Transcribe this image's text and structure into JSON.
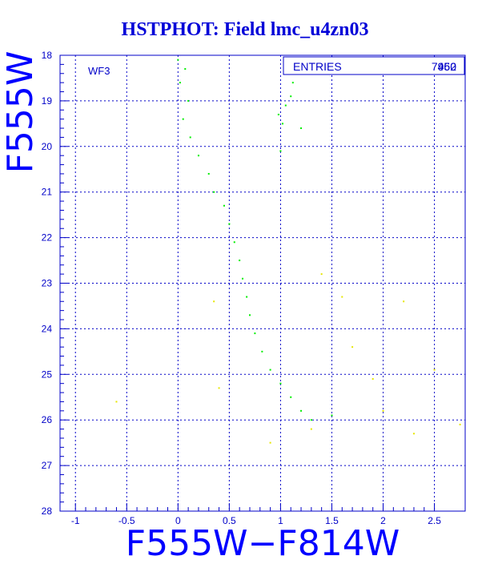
{
  "chart_data": {
    "type": "scatter",
    "title": "HSTPHOT: Field lmc_u4zn03",
    "xlabel": "F555W−F814W",
    "ylabel": "F555W",
    "xlim": [
      -1.15,
      2.8
    ],
    "ylim": [
      28,
      18
    ],
    "y_inverted": true,
    "grid": true,
    "xticks": [
      -1,
      -0.5,
      0,
      0.5,
      1,
      1.5,
      2,
      2.5
    ],
    "xtick_labels": [
      "-1",
      "-0.5",
      "0",
      "0.5",
      "1",
      "1.5",
      "2",
      "2.5"
    ],
    "yticks": [
      18,
      19,
      20,
      21,
      22,
      23,
      24,
      25,
      26,
      27,
      28
    ],
    "ytick_labels": [
      "18",
      "19",
      "20",
      "21",
      "22",
      "23",
      "24",
      "25",
      "26",
      "27",
      "28"
    ],
    "panel_label": "WF3",
    "stats_box": {
      "label": "ENTRIES",
      "value": "7960",
      "overprinted_value": "452"
    },
    "colors": {
      "axes": "#0000c8",
      "grid": "#0000c8",
      "title": "#0000d8",
      "points_main": "#00ee00",
      "points_secondary": "#e6e600"
    },
    "series": [
      {
        "name": "",
        "color": "#00ee00",
        "points": [
          [
            0.0,
            18.1
          ],
          [
            0.07,
            18.3
          ],
          [
            0.02,
            18.6
          ],
          [
            0.1,
            19.0
          ],
          [
            0.05,
            19.4
          ],
          [
            0.12,
            19.8
          ],
          [
            0.2,
            20.2
          ],
          [
            0.3,
            20.6
          ],
          [
            0.35,
            21.0
          ],
          [
            0.45,
            21.3
          ],
          [
            0.5,
            21.7
          ],
          [
            0.55,
            22.1
          ],
          [
            0.6,
            22.5
          ],
          [
            0.63,
            22.9
          ],
          [
            0.67,
            23.3
          ],
          [
            0.7,
            23.7
          ],
          [
            0.75,
            24.1
          ],
          [
            0.82,
            24.5
          ],
          [
            0.9,
            24.9
          ],
          [
            1.0,
            25.2
          ],
          [
            1.1,
            25.5
          ],
          [
            1.2,
            25.8
          ],
          [
            1.3,
            26.0
          ],
          [
            1.5,
            25.9
          ],
          [
            0.98,
            19.3
          ],
          [
            1.02,
            19.5
          ],
          [
            1.05,
            19.1
          ],
          [
            1.1,
            18.9
          ],
          [
            1.12,
            18.6
          ],
          [
            1.18,
            18.4
          ],
          [
            1.2,
            19.6
          ],
          [
            1.0,
            20.1
          ]
        ]
      },
      {
        "name": "",
        "color": "#e6e600",
        "points": [
          [
            -0.6,
            25.6
          ],
          [
            0.35,
            23.4
          ],
          [
            0.4,
            25.3
          ],
          [
            1.4,
            22.8
          ],
          [
            1.6,
            23.3
          ],
          [
            1.7,
            24.4
          ],
          [
            1.9,
            25.1
          ],
          [
            2.0,
            25.8
          ],
          [
            2.2,
            23.4
          ],
          [
            2.3,
            26.3
          ],
          [
            2.5,
            24.9
          ],
          [
            1.3,
            26.2
          ],
          [
            0.9,
            26.5
          ],
          [
            2.75,
            26.1
          ]
        ]
      }
    ]
  }
}
